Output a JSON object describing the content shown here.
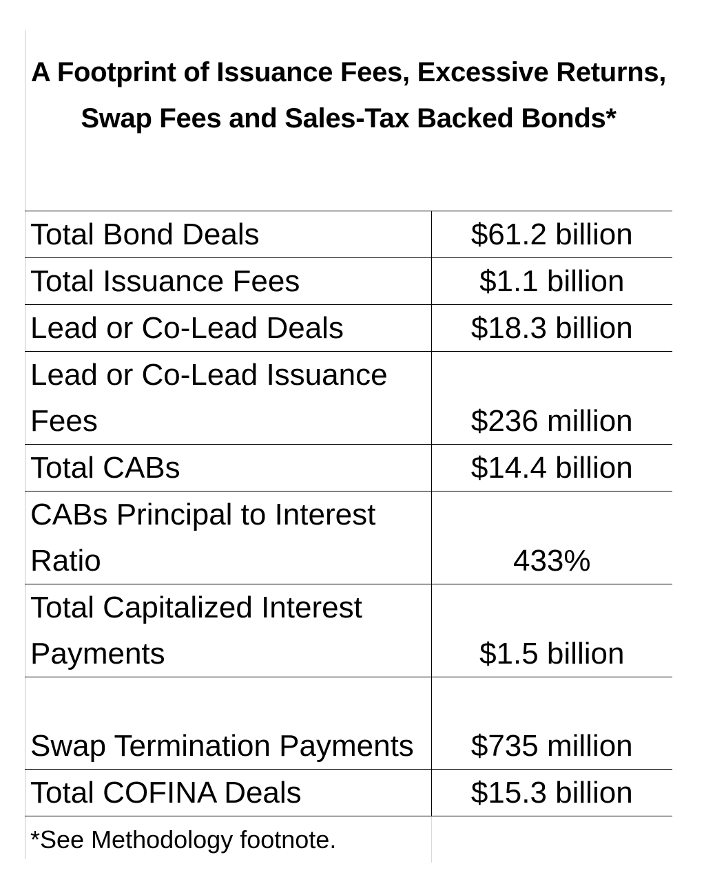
{
  "chart_data": {
    "type": "table",
    "title": "A Footprint of Issuance Fees, Excessive Returns, Swap Fees and Sales-Tax Backed Bonds*",
    "rows": [
      {
        "label": "Total Bond Deals",
        "value": "$61.2 billion"
      },
      {
        "label": "Total Issuance Fees",
        "value": "$1.1 billion"
      },
      {
        "label": "Lead or Co-Lead Deals",
        "value": "$18.3 billion"
      },
      {
        "label": "Lead or Co-Lead Issuance Fees",
        "value": "$236 million"
      },
      {
        "label": "Total CABs",
        "value": "$14.4 billion"
      },
      {
        "label": "CABs Principal to Interest Ratio",
        "value": "433%"
      },
      {
        "label": "Total Capitalized Interest Payments",
        "value": "$1.5 billion"
      },
      {
        "label": "Swap Termination Payments",
        "value": "$735 million"
      },
      {
        "label": "Total COFINA Deals",
        "value": "$15.3 billion"
      }
    ],
    "footnote": "*See Methodology footnote."
  }
}
